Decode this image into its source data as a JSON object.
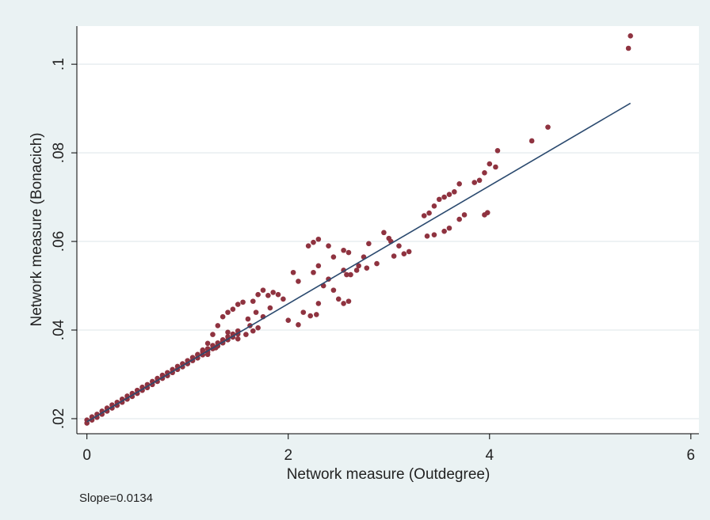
{
  "chart_data": {
    "type": "scatter",
    "xlabel": "Network measure (Outdegree)",
    "ylabel": "Network measure (Bonacich)",
    "note": "Slope=0.0134",
    "xlim": [
      -0.1,
      6.08
    ],
    "xticks": [
      0,
      2,
      4,
      6
    ],
    "ylim": [
      0.0166,
      0.1086
    ],
    "yticks": [
      {
        "value": 0.02,
        "label": ".02"
      },
      {
        "value": 0.04,
        "label": ".04"
      },
      {
        "value": 0.06,
        "label": ".06"
      },
      {
        "value": 0.08,
        "label": ".08"
      },
      {
        "value": 0.1,
        "label": ".1"
      }
    ],
    "grid": true,
    "series": [
      {
        "type": "scatter",
        "color": "#8f3340",
        "x": [
          0,
          0,
          0.05,
          0.05,
          0.1,
          0.1,
          0.15,
          0.15,
          0.2,
          0.2,
          0.25,
          0.25,
          0.3,
          0.3,
          0.35,
          0.35,
          0.4,
          0.4,
          0.45,
          0.45,
          0.5,
          0.5,
          0.55,
          0.55,
          0.6,
          0.6,
          0.65,
          0.65,
          0.7,
          0.7,
          0.75,
          0.75,
          0.8,
          0.8,
          0.85,
          0.85,
          0.9,
          0.9,
          0.95,
          0.95,
          1.0,
          1.0,
          1.05,
          1.05,
          1.1,
          1.1,
          1.15,
          1.15,
          1.2,
          1.2,
          1.25,
          1.25,
          1.3,
          1.3,
          1.35,
          1.35,
          1.4,
          1.4,
          1.45,
          1.45,
          1.5,
          1.5,
          5.38,
          5.4,
          4.58,
          4.42,
          4.08,
          4.06,
          4.0,
          3.95,
          3.9,
          3.85,
          3.7,
          3.65,
          3.6,
          3.55,
          3.5,
          3.45,
          3.4,
          3.35,
          3.98,
          3.95,
          3.75,
          3.7,
          3.6,
          3.55,
          3.45,
          3.38,
          3.2,
          3.15,
          3.05,
          3.1,
          3.0,
          2.95,
          3.02,
          2.8,
          2.75,
          2.7,
          2.68,
          2.62,
          2.58,
          2.55,
          2.78,
          2.88,
          2.25,
          2.3,
          2.2,
          2.4,
          2.3,
          2.25,
          2.45,
          2.55,
          2.6,
          2.35,
          2.4,
          2.5,
          2.55,
          2.45,
          2.6,
          2.3,
          2.28,
          2.22,
          2.15,
          2.1,
          2.0,
          2.05,
          2.1,
          1.85,
          1.75,
          1.8,
          1.9,
          1.95,
          1.7,
          1.65,
          1.55,
          1.5,
          1.45,
          1.4,
          1.35,
          1.68,
          1.75,
          1.82,
          1.6,
          1.7,
          1.65,
          1.58,
          1.62,
          1.3,
          1.25,
          1.2,
          1.15,
          1.1,
          1.4,
          1.5,
          1.35,
          1.28,
          1.2
        ],
        "values": [
          0.0197,
          0.019,
          0.0204,
          0.0197,
          0.021,
          0.0203,
          0.0217,
          0.021,
          0.0224,
          0.0217,
          0.0231,
          0.0224,
          0.0237,
          0.023,
          0.0244,
          0.0237,
          0.0251,
          0.0244,
          0.0257,
          0.025,
          0.0264,
          0.0257,
          0.0271,
          0.0264,
          0.0277,
          0.027,
          0.0284,
          0.0277,
          0.0291,
          0.0284,
          0.0298,
          0.0291,
          0.0304,
          0.0297,
          0.0311,
          0.0304,
          0.0318,
          0.0311,
          0.0324,
          0.0317,
          0.0331,
          0.0324,
          0.0338,
          0.0331,
          0.0344,
          0.0337,
          0.0351,
          0.0344,
          0.0358,
          0.0351,
          0.0365,
          0.0358,
          0.0371,
          0.0364,
          0.0378,
          0.0371,
          0.0385,
          0.0378,
          0.0391,
          0.0384,
          0.0398,
          0.0391,
          0.1036,
          0.1064,
          0.0858,
          0.0827,
          0.0805,
          0.0768,
          0.0775,
          0.0755,
          0.0738,
          0.0733,
          0.073,
          0.0712,
          0.0706,
          0.07,
          0.0695,
          0.068,
          0.0664,
          0.0658,
          0.0665,
          0.066,
          0.066,
          0.065,
          0.063,
          0.0623,
          0.0615,
          0.0612,
          0.0577,
          0.0572,
          0.0567,
          0.059,
          0.0607,
          0.062,
          0.06,
          0.0595,
          0.0565,
          0.0545,
          0.0535,
          0.0525,
          0.0525,
          0.0535,
          0.054,
          0.055,
          0.0598,
          0.0605,
          0.059,
          0.059,
          0.0545,
          0.053,
          0.0565,
          0.058,
          0.0575,
          0.05,
          0.0515,
          0.047,
          0.046,
          0.049,
          0.0465,
          0.046,
          0.0435,
          0.0432,
          0.044,
          0.0412,
          0.0422,
          0.053,
          0.051,
          0.0485,
          0.049,
          0.0478,
          0.048,
          0.047,
          0.048,
          0.0465,
          0.0463,
          0.0458,
          0.0447,
          0.044,
          0.043,
          0.044,
          0.043,
          0.045,
          0.0425,
          0.0405,
          0.0398,
          0.039,
          0.041,
          0.041,
          0.039,
          0.037,
          0.0355,
          0.0345,
          0.0395,
          0.038,
          0.0375,
          0.036,
          0.0345
        ]
      },
      {
        "type": "line",
        "color": "#2b4a6f",
        "x": [
          0,
          5.4
        ],
        "values": [
          0.0193,
          0.0912
        ]
      }
    ]
  }
}
